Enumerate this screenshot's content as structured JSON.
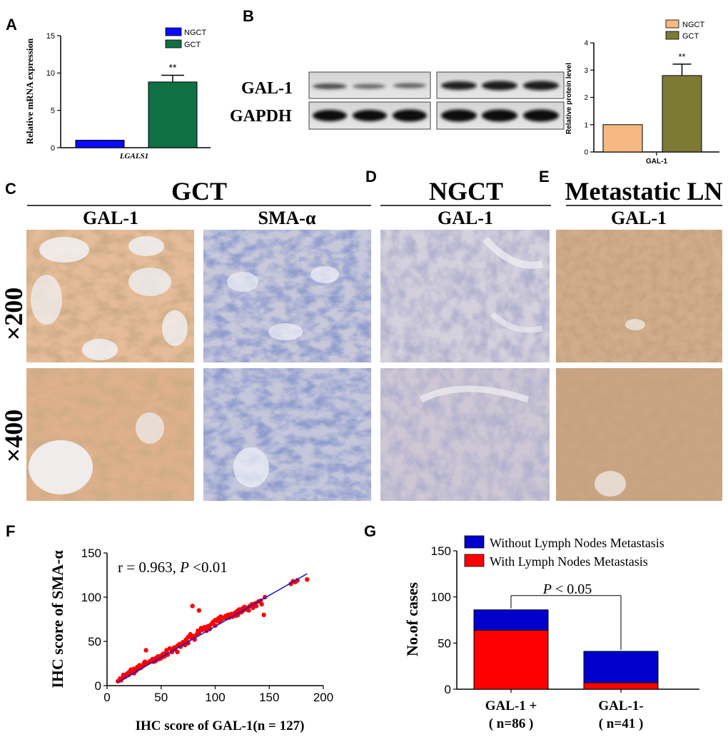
{
  "panel_labels": {
    "a": "A",
    "b": "B",
    "c": "C",
    "d": "D",
    "e": "E",
    "f": "F",
    "g": "G"
  },
  "colors": {
    "ngct_a": "#0a0aff",
    "gct_a": "#0f7044",
    "ngct_b": "#f6b981",
    "gct_b": "#7c7a35",
    "scatter_point": "#ff0000",
    "fit_line": "#1a1acc",
    "without_metastasis": "#0000cc",
    "with_metastasis": "#ff0000"
  },
  "ihc": {
    "groups": {
      "gct": "GCT",
      "ngct": "NGCT",
      "metastatic": "Metastatic LN"
    },
    "stains": {
      "gct_gal1": "GAL-1",
      "gct_sma": "SMA-α",
      "ngct_gal1": "GAL-1",
      "met_gal1": "GAL-1"
    },
    "magnifications": {
      "low": "×200",
      "high": "×400"
    }
  },
  "western_blot": {
    "band_gal1": "GAL-1",
    "band_gapdh": "GAPDH"
  },
  "chart_data": [
    {
      "id": "A",
      "type": "bar",
      "ylabel": "Relative mRNA expression",
      "xlabel": "LGALS1",
      "ylim": [
        0,
        15
      ],
      "yticks": [
        "0",
        "5",
        "10",
        "15"
      ],
      "legend": [
        "NGCT",
        "GCT"
      ],
      "legend_position": "top-right",
      "values": [
        1.0,
        8.8
      ],
      "errors": [
        0,
        0.9
      ],
      "annotation": "**"
    },
    {
      "id": "B",
      "type": "bar",
      "ylabel": "Relative protein level",
      "xlabel": "GAL-1",
      "ylim": [
        0,
        4
      ],
      "yticks": [
        "0",
        "1",
        "2",
        "3",
        "4"
      ],
      "legend": [
        "NGCT",
        "GCT"
      ],
      "legend_position": "top",
      "values": [
        1.0,
        2.8
      ],
      "errors": [
        0,
        0.42
      ],
      "annotation": "**"
    },
    {
      "id": "F",
      "type": "scatter",
      "ylabel": "IHC score of SMA-α",
      "xlabel": "IHC score of GAL-1(n = 127)",
      "xlim": [
        0,
        200
      ],
      "ylim": [
        0,
        150
      ],
      "xticks": [
        "0",
        "50",
        "100",
        "150",
        "200"
      ],
      "yticks": [
        "0",
        "50",
        "100",
        "150"
      ],
      "annotation_r": "r = 0.963, ",
      "annotation_p": "P",
      "annotation_p_rest": " <0.01",
      "fit": {
        "slope": 0.7,
        "intercept": -3,
        "x_range": [
          10,
          185
        ]
      },
      "points": [
        [
          10,
          5
        ],
        [
          12,
          8
        ],
        [
          13,
          6
        ],
        [
          15,
          9
        ],
        [
          15,
          12
        ],
        [
          17,
          10
        ],
        [
          18,
          13
        ],
        [
          20,
          12
        ],
        [
          20,
          15
        ],
        [
          22,
          14
        ],
        [
          22,
          18
        ],
        [
          24,
          16
        ],
        [
          25,
          19
        ],
        [
          25,
          14
        ],
        [
          27,
          17
        ],
        [
          28,
          21
        ],
        [
          29,
          19
        ],
        [
          30,
          23
        ],
        [
          31,
          20
        ],
        [
          33,
          22
        ],
        [
          34,
          25
        ],
        [
          35,
          27
        ],
        [
          35,
          24
        ],
        [
          36,
          40
        ],
        [
          38,
          26
        ],
        [
          40,
          28
        ],
        [
          42,
          30
        ],
        [
          43,
          27
        ],
        [
          45,
          31
        ],
        [
          45,
          28
        ],
        [
          47,
          33
        ],
        [
          48,
          30
        ],
        [
          50,
          34
        ],
        [
          50,
          31
        ],
        [
          52,
          36
        ],
        [
          53,
          33
        ],
        [
          55,
          38
        ],
        [
          55,
          40
        ],
        [
          56,
          35
        ],
        [
          58,
          42
        ],
        [
          60,
          40
        ],
        [
          60,
          38
        ],
        [
          62,
          43
        ],
        [
          63,
          41
        ],
        [
          65,
          45
        ],
        [
          65,
          38
        ],
        [
          67,
          47
        ],
        [
          68,
          44
        ],
        [
          70,
          49
        ],
        [
          72,
          46
        ],
        [
          73,
          52
        ],
        [
          74,
          50
        ],
        [
          75,
          55
        ],
        [
          75,
          48
        ],
        [
          77,
          58
        ],
        [
          78,
          54
        ],
        [
          79,
          90
        ],
        [
          80,
          56
        ],
        [
          81,
          52
        ],
        [
          83,
          58
        ],
        [
          84,
          62
        ],
        [
          85,
          85
        ],
        [
          85,
          60
        ],
        [
          87,
          65
        ],
        [
          88,
          63
        ],
        [
          90,
          64
        ],
        [
          90,
          66
        ],
        [
          92,
          62
        ],
        [
          93,
          67
        ],
        [
          95,
          68
        ],
        [
          95,
          64
        ],
        [
          97,
          70
        ],
        [
          98,
          72
        ],
        [
          100,
          74
        ],
        [
          100,
          68
        ],
        [
          102,
          73
        ],
        [
          103,
          76
        ],
        [
          104,
          72
        ],
        [
          105,
          78
        ],
        [
          106,
          75
        ],
        [
          108,
          77
        ],
        [
          110,
          76
        ],
        [
          110,
          79
        ],
        [
          112,
          80
        ],
        [
          113,
          77
        ],
        [
          115,
          81
        ],
        [
          116,
          78
        ],
        [
          118,
          82
        ],
        [
          119,
          79
        ],
        [
          120,
          84
        ],
        [
          121,
          80
        ],
        [
          122,
          86
        ],
        [
          124,
          83
        ],
        [
          125,
          87
        ],
        [
          125,
          84
        ],
        [
          127,
          89
        ],
        [
          128,
          86
        ],
        [
          130,
          88
        ],
        [
          131,
          85
        ],
        [
          132,
          90
        ],
        [
          134,
          92
        ],
        [
          135,
          88
        ],
        [
          136,
          91
        ],
        [
          137,
          93
        ],
        [
          138,
          90
        ],
        [
          140,
          95
        ],
        [
          142,
          96
        ],
        [
          143,
          92
        ],
        [
          145,
          80
        ],
        [
          146,
          100
        ],
        [
          170,
          115
        ],
        [
          172,
          118
        ],
        [
          174,
          117
        ],
        [
          176,
          119
        ],
        [
          185,
          120
        ]
      ]
    },
    {
      "id": "G",
      "type": "bar",
      "stacked": true,
      "ylabel": "No.of cases",
      "categories": [
        "GAL-1 +",
        "GAL-1-"
      ],
      "category_n": [
        "( n=86 )",
        "( n=41 )"
      ],
      "ylim": [
        0,
        150
      ],
      "yticks": [
        "0",
        "50",
        "100",
        "150"
      ],
      "series": [
        {
          "name": "With Lymph Nodes Metastasis",
          "values": [
            64,
            7
          ]
        },
        {
          "name": "Without Lymph Nodes Metastasis",
          "values": [
            22,
            34
          ]
        }
      ],
      "annotation_p": "P",
      "annotation_p_rest": " < 0.05"
    }
  ]
}
